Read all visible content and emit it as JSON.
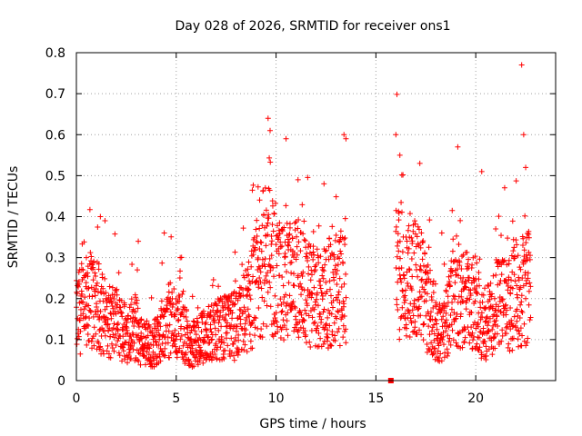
{
  "chart_data": {
    "type": "scatter",
    "title": "Day 028 of 2026, SRMTID for receiver ons1",
    "xlabel": "GPS time / hours",
    "ylabel": "SRMTID / TECUs",
    "xlim": [
      0,
      24
    ],
    "ylim": [
      0,
      0.8
    ],
    "xticks": [
      0,
      5,
      10,
      15,
      20
    ],
    "yticks": [
      0,
      0.1,
      0.2,
      0.3,
      0.4,
      0.5,
      0.6,
      0.7,
      0.8
    ],
    "grid": true,
    "marker": "plus",
    "color": "#ff0000",
    "series": [
      {
        "name": "SRMTID",
        "description": "dense cloud of red '+' markers, sampled envelope (median with upper spread)",
        "x": [
          0.0,
          0.25,
          0.5,
          0.75,
          1.0,
          1.25,
          1.5,
          1.75,
          2.0,
          2.25,
          2.5,
          2.75,
          3.0,
          3.25,
          3.5,
          3.75,
          4.0,
          4.25,
          4.5,
          4.75,
          5.0,
          5.25,
          5.5,
          5.75,
          6.0,
          6.25,
          6.5,
          6.75,
          7.0,
          7.25,
          7.5,
          7.75,
          8.0,
          8.25,
          8.5,
          8.75,
          9.0,
          9.25,
          9.5,
          9.75,
          10.0,
          10.25,
          10.5,
          10.75,
          11.0,
          11.25,
          11.5,
          11.75,
          12.0,
          12.25,
          12.5,
          12.75,
          13.0,
          13.25,
          13.5,
          15.75,
          16.0,
          16.25,
          16.5,
          16.75,
          17.0,
          17.25,
          17.5,
          17.75,
          18.0,
          18.25,
          18.5,
          18.75,
          19.0,
          19.25,
          19.5,
          19.75,
          20.0,
          20.25,
          20.5,
          20.75,
          21.0,
          21.25,
          21.5,
          21.75,
          22.0,
          22.25,
          22.5,
          22.75
        ],
        "y": [
          0.14,
          0.17,
          0.15,
          0.19,
          0.17,
          0.16,
          0.14,
          0.13,
          0.13,
          0.12,
          0.11,
          0.12,
          0.12,
          0.09,
          0.08,
          0.08,
          0.09,
          0.11,
          0.13,
          0.14,
          0.12,
          0.13,
          0.1,
          0.08,
          0.09,
          0.1,
          0.1,
          0.11,
          0.11,
          0.12,
          0.12,
          0.12,
          0.13,
          0.14,
          0.16,
          0.18,
          0.22,
          0.27,
          0.27,
          0.27,
          0.24,
          0.22,
          0.22,
          0.22,
          0.23,
          0.21,
          0.2,
          0.19,
          0.19,
          0.18,
          0.2,
          0.2,
          0.21,
          0.21,
          0.23,
          0.0,
          0.27,
          0.25,
          0.23,
          0.22,
          0.23,
          0.21,
          0.18,
          0.16,
          0.12,
          0.1,
          0.13,
          0.2,
          0.2,
          0.19,
          0.19,
          0.18,
          0.17,
          0.14,
          0.13,
          0.15,
          0.17,
          0.18,
          0.17,
          0.18,
          0.2,
          0.21,
          0.2,
          0.22
        ],
        "peaks_x": [
          0.5,
          1.2,
          3.1,
          4.4,
          5.2,
          9.6,
          9.7,
          10.5,
          11.1,
          12.4,
          13.4,
          13.5,
          16.0,
          16.2,
          17.2,
          18.3,
          19.1,
          20.3,
          21.0,
          22.3,
          22.4,
          22.5
        ],
        "peaks_y": [
          0.3,
          0.4,
          0.34,
          0.36,
          0.3,
          0.64,
          0.61,
          0.59,
          0.49,
          0.48,
          0.6,
          0.59,
          0.6,
          0.55,
          0.53,
          0.36,
          0.57,
          0.51,
          0.37,
          0.77,
          0.6,
          0.52
        ]
      }
    ]
  }
}
